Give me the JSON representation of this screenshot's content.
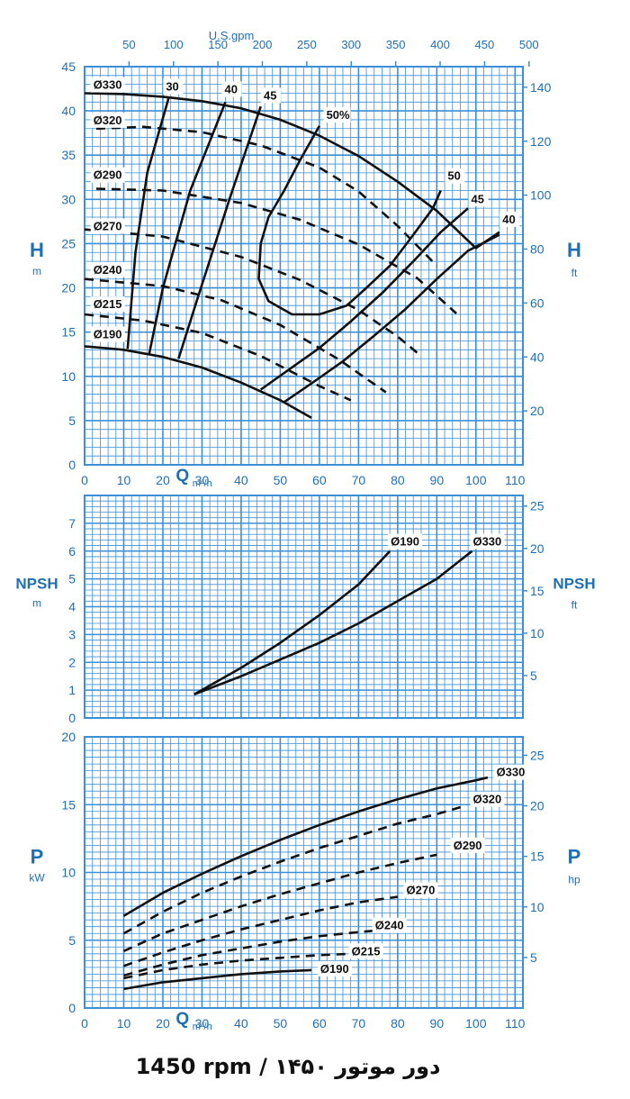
{
  "colors": {
    "grid_blue": "#3b8fd6",
    "text_blue": "#1f6fb5",
    "curve": "#111111",
    "background": "#ffffff"
  },
  "footer": {
    "text": "1450 rpm / ۱۴۵۰ دور موتور"
  },
  "chart_data": [
    {
      "id": "head",
      "type": "line",
      "title": "",
      "x_axis": {
        "label": "Q",
        "unit": "m³/h",
        "range": [
          0,
          112
        ],
        "ticks": [
          0,
          10,
          20,
          30,
          40,
          50,
          60,
          70,
          80,
          90,
          100,
          110
        ]
      },
      "y_axis": {
        "label": "H",
        "unit": "m",
        "range": [
          0,
          45
        ],
        "ticks": [
          0,
          5,
          10,
          15,
          20,
          25,
          30,
          35,
          40,
          45
        ]
      },
      "top_axis": {
        "label": "U.S.gpm",
        "ticks": [
          50,
          100,
          150,
          200,
          250,
          300,
          350,
          400,
          450,
          500
        ],
        "factor": 4.403
      },
      "right_axis": {
        "label": "H",
        "unit": "ft",
        "ticks": [
          20,
          40,
          60,
          80,
          100,
          120,
          140
        ],
        "factor": 3.281
      },
      "series": [
        {
          "name": "Ø330",
          "dash": false,
          "label_pos": [
            2,
            42.5
          ],
          "x": [
            0,
            10,
            20,
            30,
            40,
            50,
            60,
            70,
            80,
            90,
            100,
            106
          ],
          "y": [
            42,
            41.9,
            41.6,
            41.1,
            40.3,
            39,
            37.2,
            34.9,
            32,
            28.7,
            24.5,
            26.3
          ]
        },
        {
          "name": "Ø320",
          "dash": true,
          "label_pos": [
            2,
            38.5
          ],
          "x": [
            3,
            15,
            30,
            45,
            60,
            70,
            80,
            90
          ],
          "y": [
            38,
            38.2,
            37.6,
            36.1,
            33.6,
            30.9,
            27,
            22.5
          ]
        },
        {
          "name": "Ø290",
          "dash": true,
          "label_pos": [
            2,
            32.3
          ],
          "x": [
            3,
            20,
            40,
            55,
            70,
            85,
            95
          ],
          "y": [
            31.2,
            31,
            29.6,
            27.7,
            24.9,
            21.1,
            17.1
          ]
        },
        {
          "name": "Ø270",
          "dash": true,
          "label_pos": [
            2,
            26.5
          ],
          "x": [
            0,
            20,
            40,
            55,
            70,
            80,
            86
          ],
          "y": [
            26.6,
            25.8,
            23.5,
            20.9,
            17.5,
            14.5,
            12.3
          ]
        },
        {
          "name": "Ø240",
          "dash": true,
          "label_pos": [
            2,
            21.6
          ],
          "x": [
            0,
            20,
            35,
            50,
            65,
            77
          ],
          "y": [
            21,
            20.2,
            18.6,
            15.8,
            11.9,
            8.2
          ]
        },
        {
          "name": "Ø215",
          "dash": true,
          "label_pos": [
            2,
            17.7
          ],
          "x": [
            0,
            15,
            30,
            45,
            60,
            68
          ],
          "y": [
            17,
            16.3,
            14.9,
            12.3,
            8.9,
            7.3
          ]
        },
        {
          "name": "Ø190",
          "dash": false,
          "label_pos": [
            2,
            14.3
          ],
          "x": [
            0,
            10,
            20,
            30,
            40,
            50,
            58
          ],
          "y": [
            13.4,
            13,
            12.2,
            11,
            9.3,
            7.3,
            5.3
          ]
        }
      ],
      "efficiency_curves": [
        {
          "label": "30",
          "label_pos": [
            21,
            42.3
          ],
          "x": [
            11,
            13,
            16,
            21.5
          ],
          "y": [
            13.1,
            24,
            33,
            41.5
          ]
        },
        {
          "label": "40",
          "label_pos": [
            36,
            42
          ],
          "x": [
            16.5,
            20,
            27,
            36
          ],
          "y": [
            12.5,
            20,
            31,
            41
          ]
        },
        {
          "label": "45",
          "label_pos": [
            46,
            41.3
          ],
          "x": [
            24,
            29,
            37,
            45
          ],
          "y": [
            12,
            19,
            30,
            40.5
          ]
        },
        {
          "label": "50%",
          "label_pos": [
            62,
            39.1
          ],
          "x": [
            45,
            47,
            51,
            55,
            60
          ],
          "y": [
            25,
            28,
            31,
            34.4,
            38.3
          ]
        },
        {
          "label": "50",
          "label_pos": [
            93,
            32.2
          ],
          "x": [
            45,
            44.5,
            47,
            53,
            60,
            67,
            72,
            78,
            84,
            89,
            91
          ],
          "y": [
            25,
            21,
            18.5,
            17,
            17,
            18,
            20,
            22.5,
            26,
            29,
            31
          ]
        },
        {
          "label": "45",
          "label_pos": [
            99,
            29.6
          ],
          "x": [
            45,
            52,
            60,
            68,
            76,
            84,
            91,
            98
          ],
          "y": [
            8.5,
            10.7,
            13.2,
            16.2,
            19.4,
            23,
            26.3,
            29
          ]
        },
        {
          "label": "40",
          "label_pos": [
            107,
            27.3
          ],
          "x": [
            51,
            58,
            66,
            74,
            82,
            90,
            98,
            106
          ],
          "y": [
            7.1,
            9.2,
            11.7,
            14.6,
            17.6,
            21,
            24.2,
            26
          ]
        }
      ]
    },
    {
      "id": "npsh",
      "type": "line",
      "title": "",
      "x_axis": {
        "range": [
          0,
          112
        ],
        "ticks": []
      },
      "y_axis": {
        "label": "NPSH",
        "unit": "m",
        "range": [
          0,
          8
        ],
        "ticks": [
          0,
          1,
          2,
          3,
          4,
          5,
          6,
          7
        ]
      },
      "right_axis": {
        "label": "NPSH",
        "unit": "ft",
        "ticks": [
          5,
          10,
          15,
          20,
          25
        ],
        "factor": 3.281
      },
      "series": [
        {
          "name": "Ø190",
          "label_pos": [
            78,
            6.2
          ],
          "x": [
            28,
            40,
            50,
            60,
            70,
            78
          ],
          "y": [
            0.85,
            1.8,
            2.7,
            3.7,
            4.8,
            6.0
          ]
        },
        {
          "name": "Ø330",
          "label_pos": [
            99,
            6.2
          ],
          "x": [
            28,
            40,
            50,
            60,
            70,
            80,
            90,
            99
          ],
          "y": [
            0.85,
            1.5,
            2.1,
            2.7,
            3.4,
            4.2,
            5.0,
            6.0
          ]
        }
      ]
    },
    {
      "id": "power",
      "type": "line",
      "title": "",
      "x_axis": {
        "label": "Q",
        "unit": "m³/h",
        "range": [
          0,
          112
        ],
        "ticks": [
          0,
          10,
          20,
          30,
          40,
          50,
          60,
          70,
          80,
          90,
          100,
          110
        ]
      },
      "y_axis": {
        "label": "P",
        "unit": "kW",
        "range": [
          0,
          20
        ],
        "ticks": [
          0,
          5,
          10,
          15,
          20
        ]
      },
      "right_axis": {
        "label": "P",
        "unit": "hp",
        "ticks": [
          5,
          10,
          15,
          20,
          25
        ],
        "factor": 1.341
      },
      "series": [
        {
          "name": "Ø330",
          "dash": false,
          "label_pos": [
            105,
            17.1
          ],
          "x": [
            10,
            20,
            30,
            40,
            50,
            60,
            70,
            80,
            90,
            100,
            103
          ],
          "y": [
            6.8,
            8.5,
            9.9,
            11.2,
            12.4,
            13.5,
            14.5,
            15.4,
            16.2,
            16.8,
            17
          ]
        },
        {
          "name": "Ø320",
          "dash": true,
          "label_pos": [
            99,
            15.1
          ],
          "x": [
            10,
            20,
            30,
            40,
            50,
            60,
            70,
            80,
            90,
            97
          ],
          "y": [
            5.5,
            7.1,
            8.5,
            9.7,
            10.8,
            11.8,
            12.7,
            13.6,
            14.3,
            14.9
          ]
        },
        {
          "name": "Ø290",
          "dash": true,
          "label_pos": [
            94,
            11.7
          ],
          "x": [
            10,
            20,
            30,
            40,
            50,
            60,
            70,
            80,
            90
          ],
          "y": [
            4.2,
            5.5,
            6.5,
            7.5,
            8.4,
            9.2,
            10,
            10.7,
            11.3
          ]
        },
        {
          "name": "Ø270",
          "dash": true,
          "label_pos": [
            82,
            8.4
          ],
          "x": [
            10,
            20,
            30,
            40,
            50,
            60,
            70,
            80
          ],
          "y": [
            3.1,
            4.1,
            5,
            5.8,
            6.5,
            7.2,
            7.8,
            8.2
          ]
        },
        {
          "name": "Ø240",
          "dash": true,
          "label_pos": [
            74,
            5.8
          ],
          "x": [
            10,
            20,
            30,
            40,
            50,
            60,
            70,
            74
          ],
          "y": [
            2.4,
            3.2,
            3.9,
            4.4,
            4.9,
            5.3,
            5.6,
            5.7
          ]
        },
        {
          "name": "Ø215",
          "dash": true,
          "label_pos": [
            68,
            3.9
          ],
          "x": [
            10,
            20,
            30,
            40,
            50,
            60,
            68
          ],
          "y": [
            2.2,
            2.8,
            3.2,
            3.5,
            3.7,
            3.9,
            4
          ]
        },
        {
          "name": "Ø190",
          "dash": false,
          "label_pos": [
            60,
            2.6
          ],
          "x": [
            10,
            20,
            30,
            40,
            50,
            58
          ],
          "y": [
            1.4,
            1.9,
            2.2,
            2.5,
            2.7,
            2.8
          ]
        }
      ]
    }
  ]
}
